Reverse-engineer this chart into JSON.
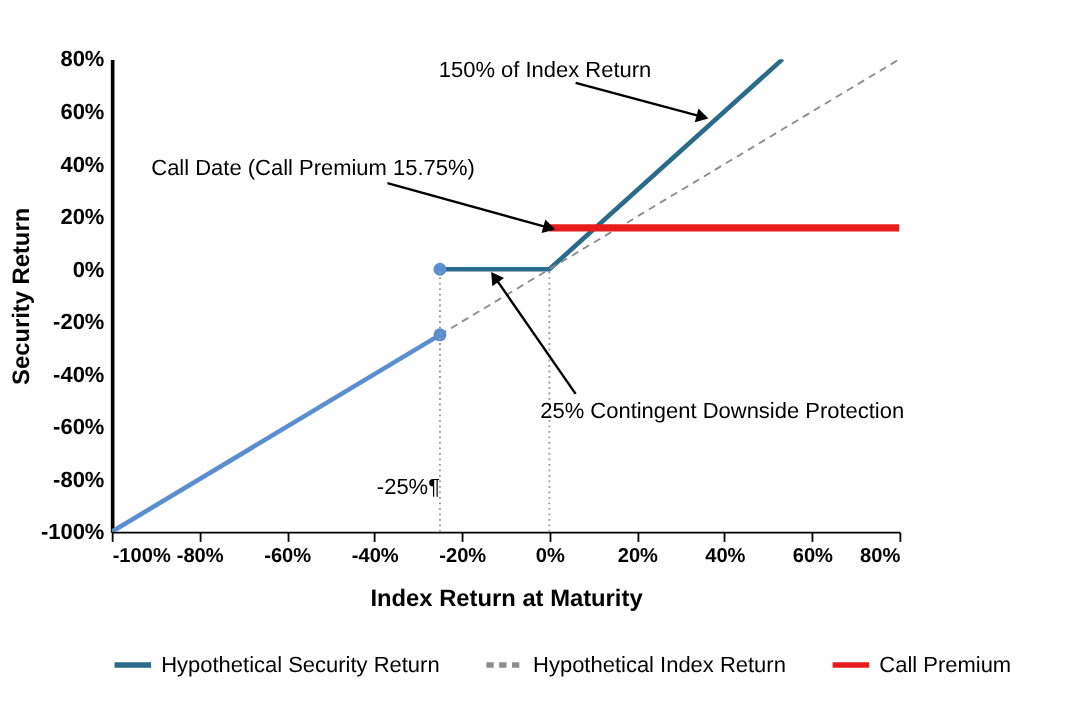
{
  "chart_data": {
    "type": "line",
    "xlabel": "Index Return at Maturity",
    "ylabel": "Security Return",
    "xlim": [
      -100,
      80
    ],
    "ylim": [
      -100,
      80
    ],
    "xticks": [
      {
        "value": -100,
        "label": "-100%"
      },
      {
        "value": -80,
        "label": "-80%"
      },
      {
        "value": -60,
        "label": "-60%"
      },
      {
        "value": -40,
        "label": "-40%"
      },
      {
        "value": -20,
        "label": "-20%"
      },
      {
        "value": 0,
        "label": "0%"
      },
      {
        "value": 20,
        "label": "20%"
      },
      {
        "value": 40,
        "label": "40%"
      },
      {
        "value": 60,
        "label": "60%"
      },
      {
        "value": 80,
        "label": "80%"
      }
    ],
    "yticks": [
      {
        "value": -100,
        "label": "-100%"
      },
      {
        "value": -80,
        "label": "-80%"
      },
      {
        "value": -60,
        "label": "-60%"
      },
      {
        "value": -40,
        "label": "-40%"
      },
      {
        "value": -20,
        "label": "-20%"
      },
      {
        "value": 0,
        "label": "0%"
      },
      {
        "value": 20,
        "label": "20%"
      },
      {
        "value": 40,
        "label": "40%"
      },
      {
        "value": 60,
        "label": "60%"
      },
      {
        "value": 80,
        "label": "80%"
      }
    ],
    "grid": false,
    "legend": "bottom",
    "series": [
      {
        "name": "Hypothetical Security Return",
        "color": "#2a6a8a",
        "x": [
          -25,
          0,
          53.3
        ],
        "values": [
          0,
          0,
          80
        ],
        "line_style": "solid"
      },
      {
        "name": "Hypothetical Index Return",
        "color": "#8c8c8c",
        "x": [
          -25,
          80
        ],
        "values": [
          -25,
          80
        ],
        "line_style": "dashed"
      },
      {
        "name": "Call Premium",
        "color": "#e81c1c",
        "x": [
          0,
          80
        ],
        "values": [
          15.75,
          15.75
        ],
        "line_style": "solid"
      },
      {
        "color": "#5b8ed0",
        "x": [
          -100,
          -25
        ],
        "values": [
          -100,
          -25
        ],
        "line_style": "solid"
      },
      {
        "type": "scatter",
        "color": "#5b8ed0",
        "x": [
          -25,
          -25
        ],
        "values": [
          0,
          -25
        ],
        "marker": "circle"
      },
      {
        "color": "#9a9a9a",
        "x": [
          -25,
          -25
        ],
        "values": [
          -100,
          0
        ],
        "line_style": "dotted"
      },
      {
        "color": "#9a9a9a",
        "x": [
          0,
          0
        ],
        "values": [
          -100,
          0
        ],
        "line_style": "dotted"
      }
    ],
    "annotations": [
      {
        "text": "150% of Index Return",
        "x": 35,
        "y": 58
      },
      {
        "text": "Call Date (Call Premium 15.75%)",
        "x": 0,
        "y": 15.75
      },
      {
        "text": "25% Contingent Downside Protection",
        "x": -12.5,
        "y": -3
      },
      {
        "text": "-25%¶",
        "x": -25,
        "y": -83
      }
    ]
  }
}
